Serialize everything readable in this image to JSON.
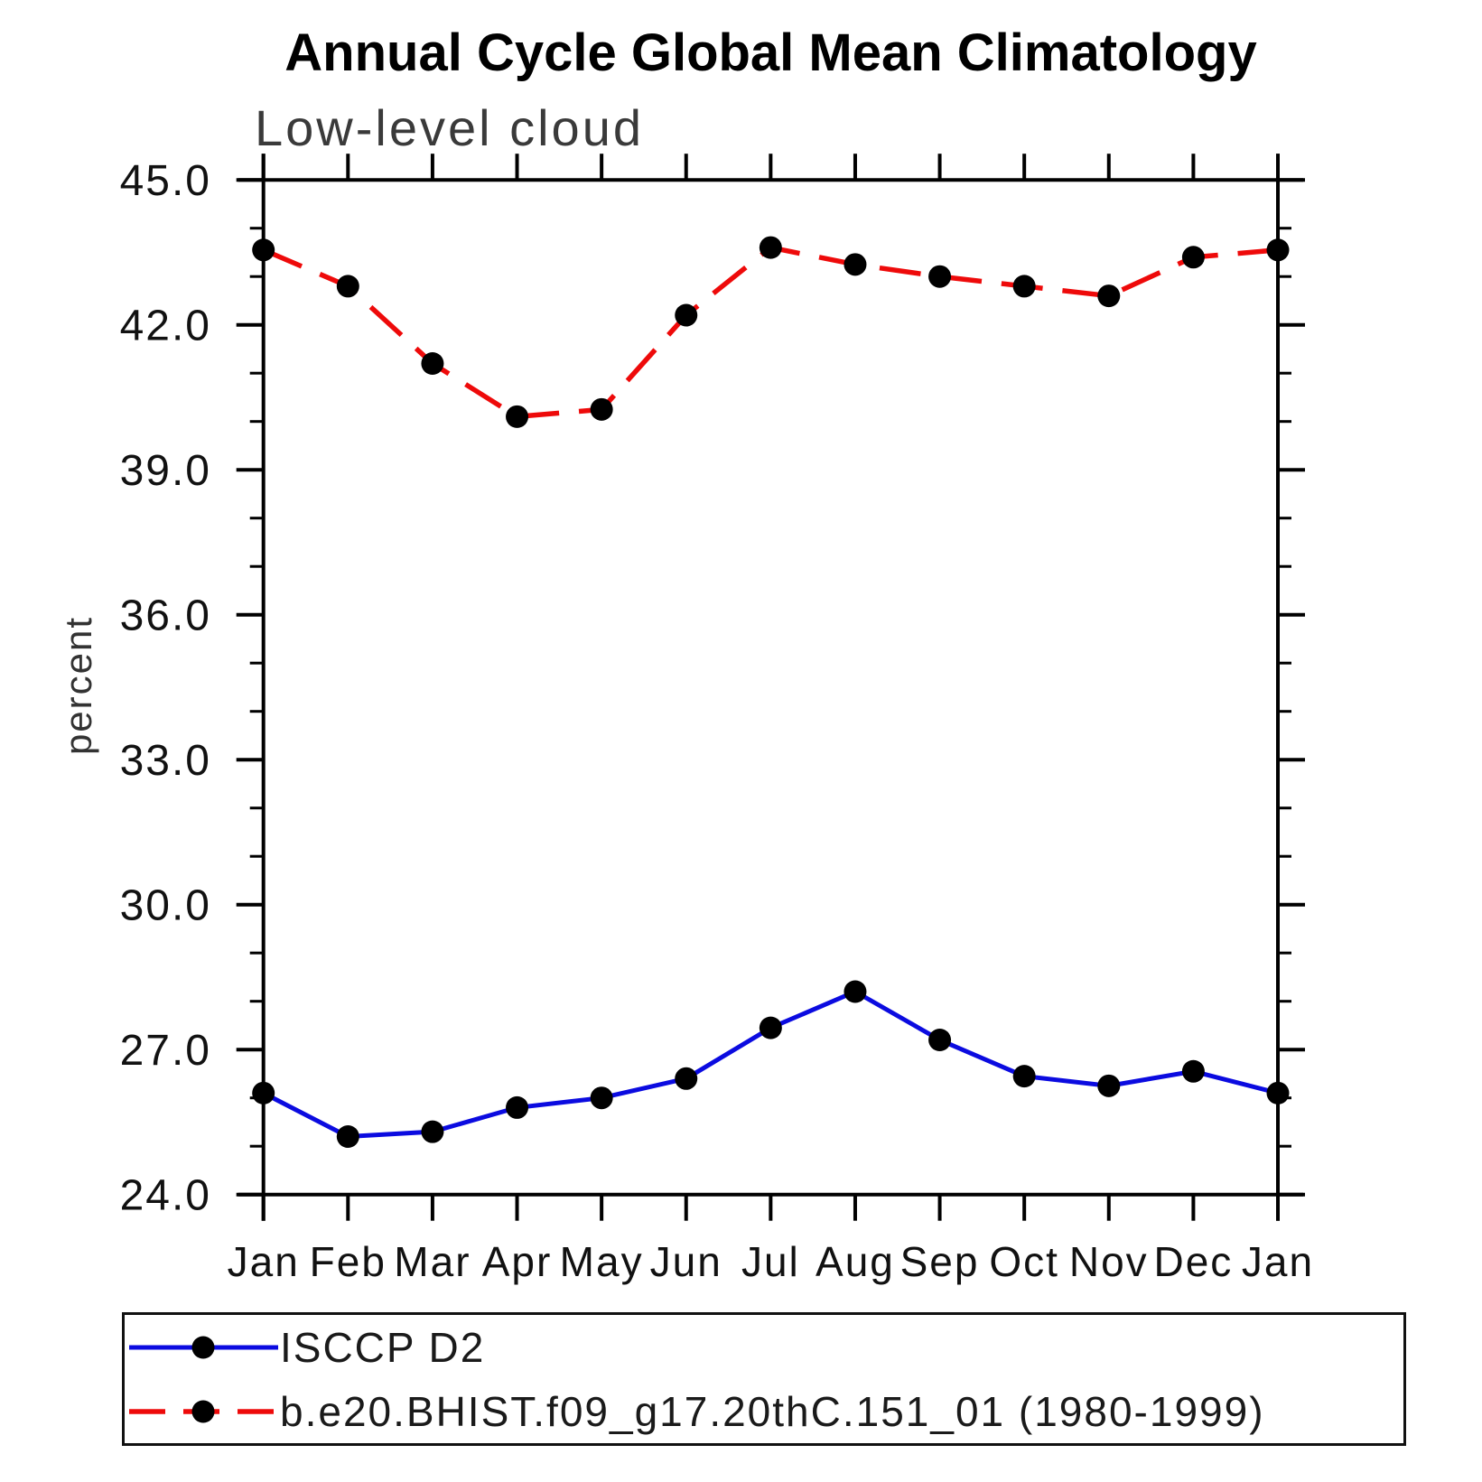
{
  "title": "Annual Cycle Global Mean Climatology",
  "subtitle": "Low-level cloud",
  "ylabel": "percent",
  "legend": {
    "marker_color": "#000000",
    "entries": [
      {
        "key": "isccp-d2",
        "label": "ISCCP D2",
        "color": "#0b0be0",
        "style": "solid"
      },
      {
        "key": "model",
        "label": "b.e20.BHIST.f09_g17.20thC.151_01 (1980-1999)",
        "color": "#ee0a0a",
        "style": "dashed"
      }
    ]
  },
  "chart_data": {
    "type": "line",
    "title": "Annual Cycle Global Mean Climatology",
    "subtitle": "Low-level cloud",
    "xlabel": "",
    "ylabel": "percent",
    "categories": [
      "Jan",
      "Feb",
      "Mar",
      "Apr",
      "May",
      "Jun",
      "Jul",
      "Aug",
      "Sep",
      "Oct",
      "Nov",
      "Dec",
      "Jan"
    ],
    "series": [
      {
        "key": "isccp-d2",
        "name": "ISCCP D2",
        "color": "#0b0be0",
        "line_style": "solid",
        "marker": "circle",
        "values": [
          26.1,
          25.2,
          25.3,
          25.8,
          26.0,
          26.4,
          27.45,
          28.2,
          27.2,
          26.45,
          26.25,
          26.55,
          26.1
        ]
      },
      {
        "key": "model",
        "name": "b.e20.BHIST.f09_g17.20thC.151_01 (1980-1999)",
        "color": "#ee0a0a",
        "line_style": "dashed",
        "marker": "circle",
        "values": [
          43.55,
          42.8,
          41.2,
          40.1,
          40.25,
          42.2,
          43.6,
          43.25,
          43.0,
          42.8,
          42.6,
          43.4,
          43.55
        ]
      }
    ],
    "ylim": [
      24.0,
      45.0
    ],
    "ytick_major": 3.0,
    "ytick_minor": 1.0,
    "ytick_labels": [
      "45.0",
      "42.0",
      "39.0",
      "36.0",
      "33.0",
      "30.0",
      "27.0",
      "24.0"
    ],
    "grid": false,
    "legend_position": "bottom",
    "marker_color": "#000000"
  }
}
